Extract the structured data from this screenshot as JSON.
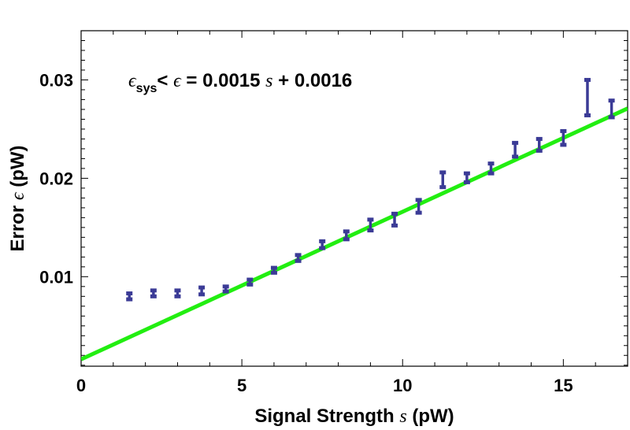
{
  "chart_data": {
    "type": "scatter",
    "xlabel": {
      "prefix": "Signal Strength ",
      "symbol": "s",
      "suffix": " (pW)"
    },
    "ylabel": {
      "prefix": "Error ",
      "symbol": "ϵ",
      "suffix": " (pW)"
    },
    "xlim": [
      0,
      17
    ],
    "ylim": [
      0.0009,
      0.035
    ],
    "xticks": [
      0,
      5,
      10,
      15
    ],
    "yticks": [
      0.01,
      0.02,
      0.03
    ],
    "xtick_labels": [
      "0",
      "5",
      "10",
      "15"
    ],
    "ytick_labels": [
      "0.01",
      "0.02",
      "0.03"
    ],
    "grid": false,
    "annotation": {
      "eps": "ϵ",
      "sub": "sys",
      "lt": "< ",
      "eps2": "ϵ",
      "eq": " = 0.0015 ",
      "s": "s",
      "tail": " + 0.0016"
    },
    "fit": {
      "slope": 0.0015,
      "intercept": 0.0016,
      "color": "#22ee11"
    },
    "series": [
      {
        "color": "#3b3b96",
        "points": [
          {
            "x": 1.5,
            "lo": 0.0077,
            "hi": 0.0083
          },
          {
            "x": 2.25,
            "lo": 0.008,
            "hi": 0.0086
          },
          {
            "x": 3.0,
            "lo": 0.008,
            "hi": 0.0086
          },
          {
            "x": 3.75,
            "lo": 0.0082,
            "hi": 0.0089
          },
          {
            "x": 4.5,
            "lo": 0.0085,
            "hi": 0.009
          },
          {
            "x": 5.25,
            "lo": 0.0092,
            "hi": 0.0097
          },
          {
            "x": 6.0,
            "lo": 0.0104,
            "hi": 0.0109
          },
          {
            "x": 6.75,
            "lo": 0.0116,
            "hi": 0.0122
          },
          {
            "x": 7.5,
            "lo": 0.0129,
            "hi": 0.0136
          },
          {
            "x": 8.25,
            "lo": 0.0138,
            "hi": 0.0146
          },
          {
            "x": 9.0,
            "lo": 0.0147,
            "hi": 0.0158
          },
          {
            "x": 9.75,
            "lo": 0.0152,
            "hi": 0.0164
          },
          {
            "x": 10.5,
            "lo": 0.0165,
            "hi": 0.0178
          },
          {
            "x": 11.25,
            "lo": 0.0191,
            "hi": 0.0206
          },
          {
            "x": 12.0,
            "lo": 0.0196,
            "hi": 0.0205
          },
          {
            "x": 12.75,
            "lo": 0.0205,
            "hi": 0.0215
          },
          {
            "x": 13.5,
            "lo": 0.0222,
            "hi": 0.0236
          },
          {
            "x": 14.25,
            "lo": 0.0228,
            "hi": 0.024
          },
          {
            "x": 15.0,
            "lo": 0.0234,
            "hi": 0.0248
          },
          {
            "x": 15.75,
            "lo": 0.0264,
            "hi": 0.03
          },
          {
            "x": 16.5,
            "lo": 0.0262,
            "hi": 0.0279
          }
        ]
      }
    ]
  }
}
